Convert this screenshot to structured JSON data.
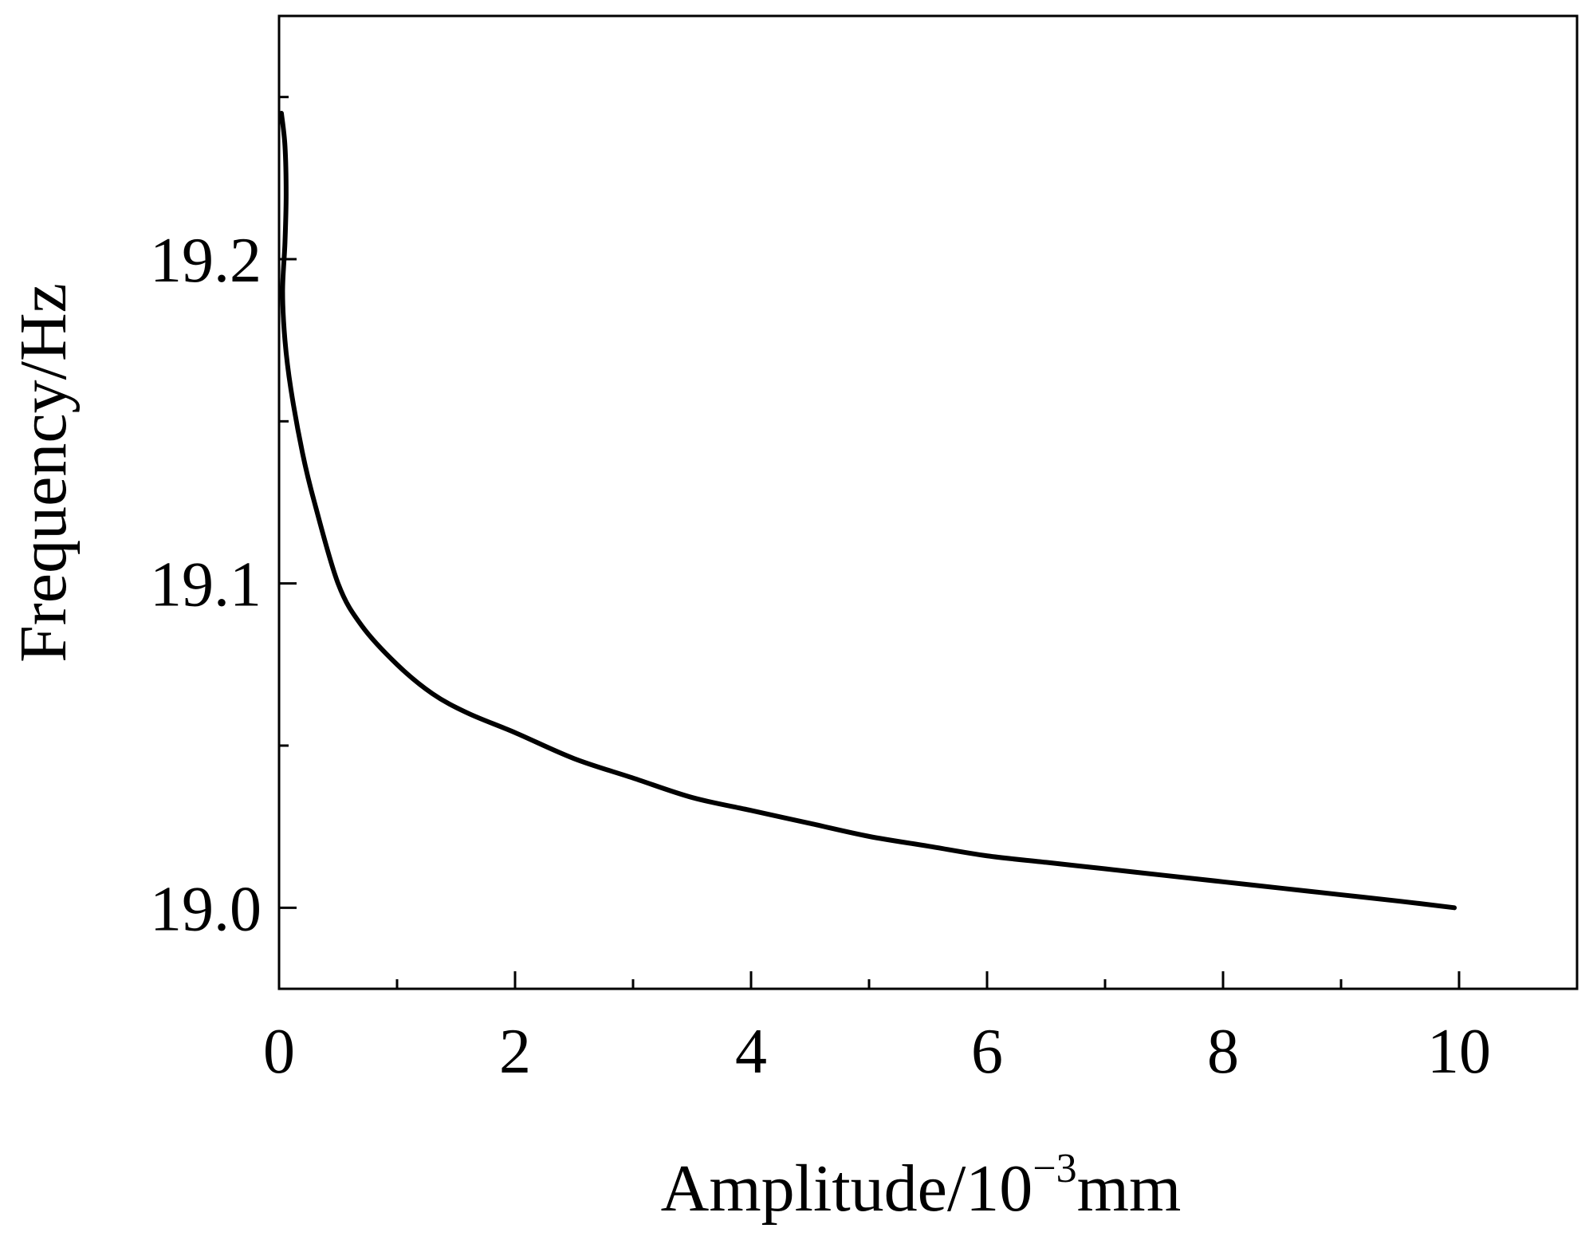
{
  "chart_data": {
    "type": "line",
    "title": "",
    "xlabel": {
      "base": "Amplitude/10",
      "superscript": "−3",
      "unit": "mm"
    },
    "ylabel": "Frequency/Hz",
    "xlim": [
      0,
      11
    ],
    "ylim": [
      18.975,
      19.275
    ],
    "x_ticks": [
      0,
      2,
      4,
      6,
      8,
      10
    ],
    "x_tick_labels": [
      "0",
      "2",
      "4",
      "6",
      "8",
      "10"
    ],
    "x_minor_ticks": [
      1,
      3,
      5,
      7,
      9
    ],
    "y_ticks": [
      19.0,
      19.1,
      19.2
    ],
    "y_tick_labels": [
      "19.0",
      "19.1",
      "19.2"
    ],
    "y_minor_ticks": [
      19.05,
      19.15,
      19.25
    ],
    "grid": false,
    "legend": "none",
    "line_color": "#000000",
    "series": [
      {
        "x": [
          0.02,
          0.05,
          0.06,
          0.05,
          0.03,
          0.05,
          0.1,
          0.2,
          0.3,
          0.5,
          0.7,
          1.0,
          1.3,
          1.6,
          2.0,
          2.5,
          3.0,
          3.5,
          4.0,
          4.5,
          5.0,
          5.5,
          6.0,
          6.5,
          7.0,
          7.5,
          8.0,
          8.5,
          9.0,
          9.5,
          9.96
        ],
        "y": [
          19.245,
          19.235,
          19.22,
          19.205,
          19.19,
          19.175,
          19.16,
          19.14,
          19.125,
          19.1,
          19.087,
          19.075,
          19.066,
          19.06,
          19.054,
          19.046,
          19.04,
          19.034,
          19.03,
          19.026,
          19.022,
          19.019,
          19.016,
          19.014,
          19.012,
          19.01,
          19.008,
          19.006,
          19.004,
          19.002,
          19.0
        ]
      }
    ]
  }
}
